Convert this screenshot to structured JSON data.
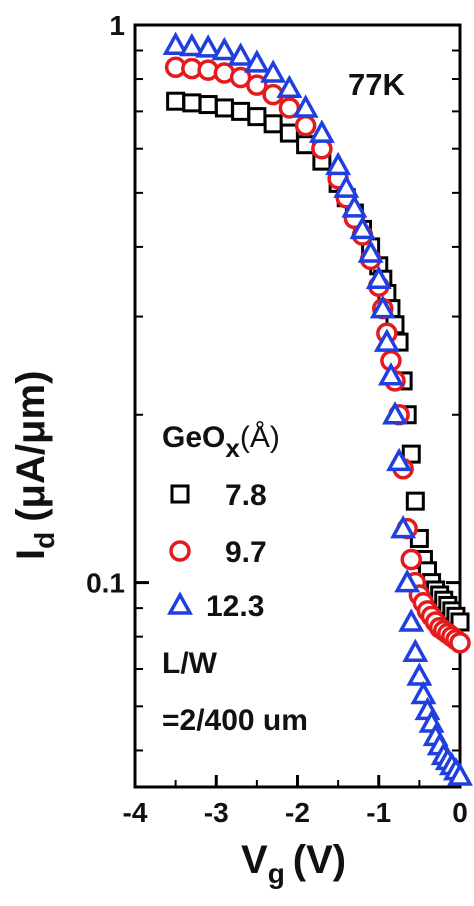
{
  "chart_data": {
    "type": "scatter",
    "xlabel": "V",
    "xlabel_sub": "g",
    "xlabel_unit": "(V)",
    "ylabel": "I",
    "ylabel_sub": "d",
    "ylabel_unit": "(μA/μm)",
    "xlim": [
      -4,
      0
    ],
    "ylim": [
      0.043,
      1.0
    ],
    "yscale": "log",
    "xticks": [
      -4,
      -3,
      -2,
      -1,
      0
    ],
    "xtick_labels": [
      "-4",
      "-3",
      "-2",
      "-1",
      "0"
    ],
    "yticks": [
      0.1,
      1
    ],
    "ytick_labels": [
      "0.1",
      "1"
    ],
    "grid": false,
    "annotation": "77K",
    "legend_title": "GeOx (Å)",
    "legend_title_main": "GeO",
    "legend_title_sub": "x",
    "legend_title_unit": "(Å)",
    "legend_position": "left",
    "note_line1": "L/W",
    "note_line2": "=2/400 um",
    "series": [
      {
        "name": "7.8",
        "marker": "square",
        "color": "#000000",
        "x": [
          -3.5,
          -3.3,
          -3.1,
          -2.9,
          -2.7,
          -2.5,
          -2.3,
          -2.1,
          -1.9,
          -1.7,
          -1.5,
          -1.4,
          -1.3,
          -1.2,
          -1.1,
          -1.0,
          -0.95,
          -0.9,
          -0.85,
          -0.8,
          -0.75,
          -0.7,
          -0.65,
          -0.6,
          -0.55,
          -0.5,
          -0.45,
          -0.4,
          -0.35,
          -0.3,
          -0.25,
          -0.2,
          -0.15,
          -0.1,
          -0.05,
          0.0
        ],
        "y": [
          0.73,
          0.725,
          0.72,
          0.71,
          0.7,
          0.685,
          0.665,
          0.64,
          0.61,
          0.57,
          0.52,
          0.49,
          0.46,
          0.43,
          0.4,
          0.37,
          0.35,
          0.33,
          0.31,
          0.29,
          0.27,
          0.23,
          0.2,
          0.17,
          0.14,
          0.12,
          0.11,
          0.105,
          0.1,
          0.097,
          0.095,
          0.093,
          0.091,
          0.089,
          0.087,
          0.085
        ]
      },
      {
        "name": "9.7",
        "marker": "circle",
        "color": "#e41a1c",
        "x": [
          -3.5,
          -3.3,
          -3.1,
          -2.9,
          -2.7,
          -2.5,
          -2.3,
          -2.1,
          -1.9,
          -1.7,
          -1.5,
          -1.4,
          -1.3,
          -1.2,
          -1.1,
          -1.0,
          -0.95,
          -0.9,
          -0.85,
          -0.8,
          -0.75,
          -0.7,
          -0.65,
          -0.6,
          -0.55,
          -0.5,
          -0.45,
          -0.4,
          -0.35,
          -0.3,
          -0.25,
          -0.2,
          -0.15,
          -0.1,
          -0.05,
          0.0
        ],
        "y": [
          0.84,
          0.835,
          0.83,
          0.82,
          0.805,
          0.78,
          0.75,
          0.71,
          0.66,
          0.6,
          0.53,
          0.49,
          0.45,
          0.42,
          0.38,
          0.34,
          0.31,
          0.28,
          0.25,
          0.23,
          0.2,
          0.16,
          0.125,
          0.11,
          0.1,
          0.095,
          0.092,
          0.089,
          0.087,
          0.085,
          0.083,
          0.082,
          0.081,
          0.08,
          0.079,
          0.078
        ]
      },
      {
        "name": "12.3",
        "marker": "triangle",
        "color": "#1f3fe0",
        "x": [
          -3.5,
          -3.3,
          -3.1,
          -2.9,
          -2.7,
          -2.5,
          -2.3,
          -2.1,
          -1.9,
          -1.7,
          -1.5,
          -1.4,
          -1.3,
          -1.2,
          -1.1,
          -1.0,
          -0.95,
          -0.9,
          -0.85,
          -0.8,
          -0.75,
          -0.7,
          -0.65,
          -0.6,
          -0.55,
          -0.5,
          -0.45,
          -0.4,
          -0.35,
          -0.3,
          -0.25,
          -0.2,
          -0.15,
          -0.1,
          -0.05,
          0.0
        ],
        "y": [
          0.92,
          0.915,
          0.91,
          0.9,
          0.88,
          0.855,
          0.82,
          0.77,
          0.71,
          0.64,
          0.56,
          0.51,
          0.47,
          0.43,
          0.39,
          0.35,
          0.31,
          0.27,
          0.235,
          0.2,
          0.165,
          0.125,
          0.1,
          0.085,
          0.075,
          0.068,
          0.063,
          0.059,
          0.056,
          0.053,
          0.051,
          0.049,
          0.048,
          0.047,
          0.046,
          0.045
        ]
      }
    ]
  }
}
